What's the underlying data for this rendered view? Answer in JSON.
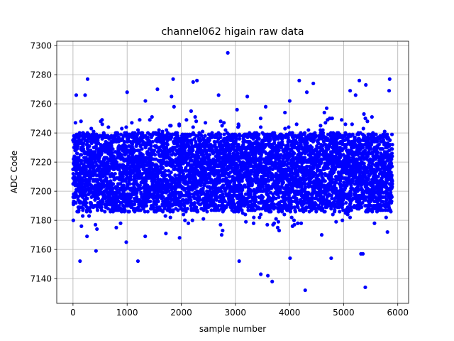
{
  "chart_data": {
    "type": "scatter",
    "title": "channel062 higain raw data",
    "xlabel": "sample number",
    "ylabel": "ADC Code",
    "xlim": [
      -300,
      6200
    ],
    "ylim": [
      7123,
      7303
    ],
    "xticks": [
      0,
      1000,
      2000,
      3000,
      4000,
      5000,
      6000
    ],
    "yticks": [
      7140,
      7160,
      7180,
      7200,
      7220,
      7240,
      7260,
      7280,
      7300
    ],
    "grid": true,
    "series": [
      {
        "marker_color": "#0000ff",
        "n_points": 5900,
        "x_range": [
          0,
          5900
        ],
        "bulk_range": [
          7186,
          7240
        ],
        "center": 7214,
        "outliers": [
          {
            "x": 2860,
            "y": 7295
          },
          {
            "x": 270,
            "y": 7277
          },
          {
            "x": 1850,
            "y": 7277
          },
          {
            "x": 2220,
            "y": 7275
          },
          {
            "x": 2290,
            "y": 7276
          },
          {
            "x": 4180,
            "y": 7276
          },
          {
            "x": 4440,
            "y": 7274
          },
          {
            "x": 5290,
            "y": 7276
          },
          {
            "x": 5410,
            "y": 7273
          },
          {
            "x": 5850,
            "y": 7277
          },
          {
            "x": 5120,
            "y": 7269
          },
          {
            "x": 5840,
            "y": 7269
          },
          {
            "x": 60,
            "y": 7266
          },
          {
            "x": 1000,
            "y": 7268
          },
          {
            "x": 1560,
            "y": 7270
          },
          {
            "x": 1820,
            "y": 7265
          },
          {
            "x": 2690,
            "y": 7266
          },
          {
            "x": 3220,
            "y": 7265
          },
          {
            "x": 4320,
            "y": 7268
          },
          {
            "x": 130,
            "y": 7152
          },
          {
            "x": 1200,
            "y": 7152
          },
          {
            "x": 3070,
            "y": 7152
          },
          {
            "x": 4010,
            "y": 7154
          },
          {
            "x": 4770,
            "y": 7154
          },
          {
            "x": 5320,
            "y": 7157
          },
          {
            "x": 3470,
            "y": 7143
          },
          {
            "x": 3600,
            "y": 7142
          },
          {
            "x": 3680,
            "y": 7138
          },
          {
            "x": 4290,
            "y": 7132
          },
          {
            "x": 5400,
            "y": 7134
          }
        ]
      }
    ]
  }
}
